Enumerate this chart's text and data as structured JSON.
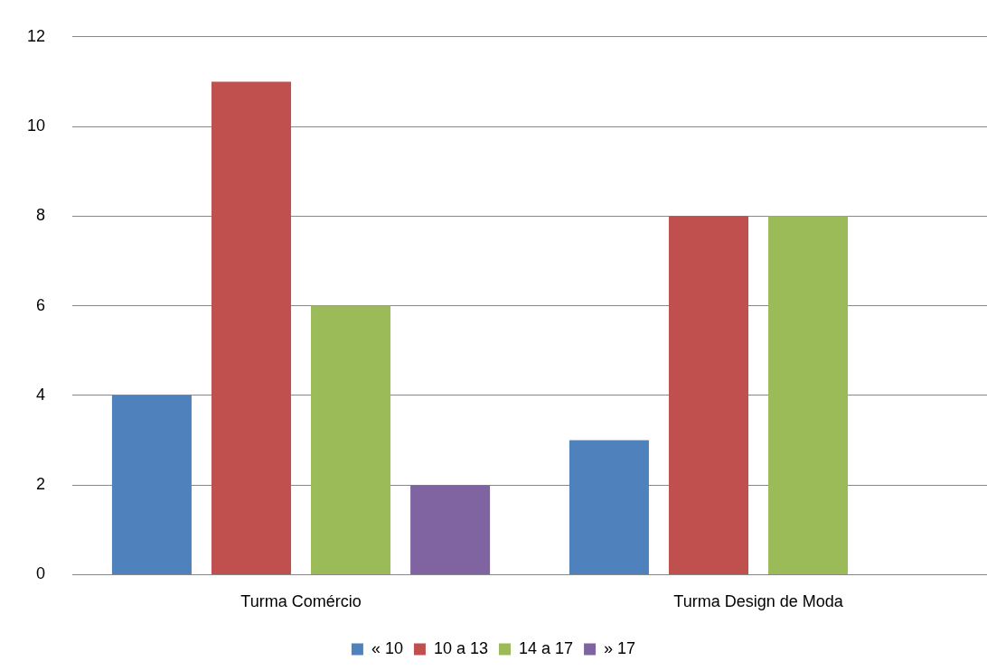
{
  "chart_data": {
    "type": "bar",
    "categories": [
      "Turma Comércio",
      "Turma Design de Moda"
    ],
    "series": [
      {
        "name": "« 10",
        "color": "#4f81bd",
        "values": [
          4,
          3
        ]
      },
      {
        "name": "10 a 13",
        "color": "#c0504d",
        "values": [
          11,
          8
        ]
      },
      {
        "name": "14 a 17",
        "color": "#9bbb59",
        "values": [
          6,
          8
        ]
      },
      {
        "name": "» 17",
        "color": "#8064a2",
        "values": [
          2,
          null
        ]
      }
    ],
    "ylim": [
      0,
      12
    ],
    "yticks": [
      0,
      2,
      4,
      6,
      8,
      10,
      12
    ],
    "grid": "y",
    "legend": "bottom"
  }
}
